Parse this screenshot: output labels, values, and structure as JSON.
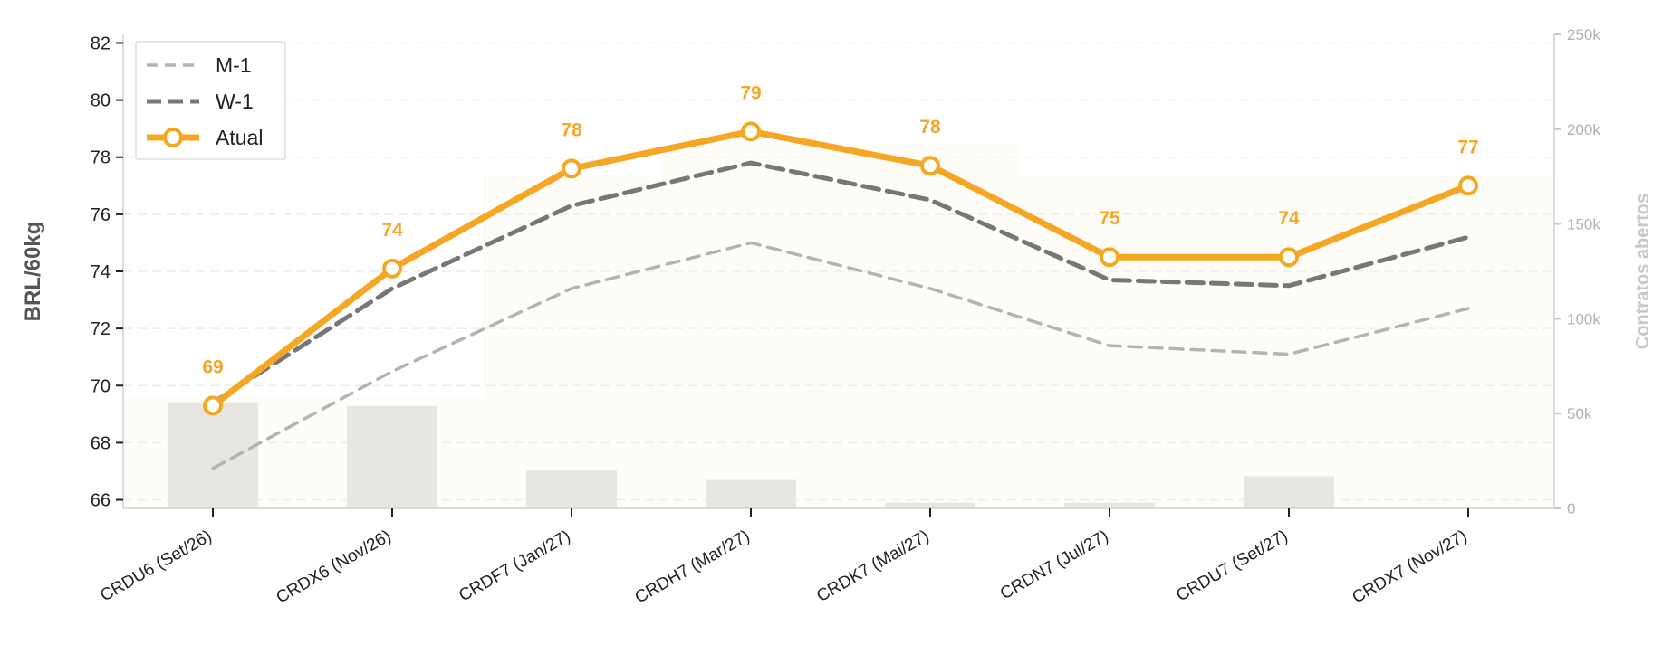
{
  "chart_data": {
    "type": "line",
    "title": "",
    "categories": [
      "CRDU6 (Set/26)",
      "CRDX6 (Nov/26)",
      "CRDF7 (Jan/27)",
      "CRDH7 (Mar/27)",
      "CRDK7 (Mai/27)",
      "CRDN7 (Jul/27)",
      "CRDU7 (Set/27)",
      "CRDX7 (Nov/27)"
    ],
    "ylabel": "BRL/60kg",
    "ylim": [
      65.7,
      82.3
    ],
    "yticks": [
      66,
      68,
      70,
      72,
      74,
      76,
      78,
      80,
      82
    ],
    "y2label": "Contratos abertos",
    "y2lim": [
      0,
      250000
    ],
    "y2ticks": [
      0,
      50000,
      100000,
      150000,
      200000,
      250000
    ],
    "y2ticklabels": [
      "0",
      "50k",
      "100k",
      "150k",
      "200k",
      "250k"
    ],
    "grid": "horizontal dashed",
    "legend_position": "top-left",
    "series": [
      {
        "name": "M-1",
        "style": "dashed",
        "color": "#b3b3b3",
        "values": [
          67.1,
          70.5,
          73.4,
          75.0,
          73.4,
          71.4,
          71.1,
          72.7
        ]
      },
      {
        "name": "W-1",
        "style": "dashed",
        "color": "#777777",
        "values": [
          69.4,
          73.4,
          76.3,
          77.8,
          76.5,
          73.7,
          73.5,
          75.2
        ]
      },
      {
        "name": "Atual",
        "style": "solid-markers",
        "color": "#f5a623",
        "values": [
          69.3,
          74.1,
          77.6,
          78.9,
          77.7,
          74.5,
          74.5,
          77.0
        ]
      }
    ],
    "data_labels": [
      "69",
      "74",
      "78",
      "79",
      "78",
      "75",
      "74",
      "77"
    ],
    "bars": {
      "axis": "secondary",
      "color": "#e8e6e1",
      "values": [
        56000,
        54000,
        20000,
        15000,
        3000,
        3000,
        17000,
        0
      ]
    },
    "range_band": {
      "axis": "secondary",
      "color": "#fdfcf6",
      "values": [
        58000,
        58000,
        175000,
        192000,
        192000,
        175000,
        175000,
        175000
      ]
    }
  }
}
